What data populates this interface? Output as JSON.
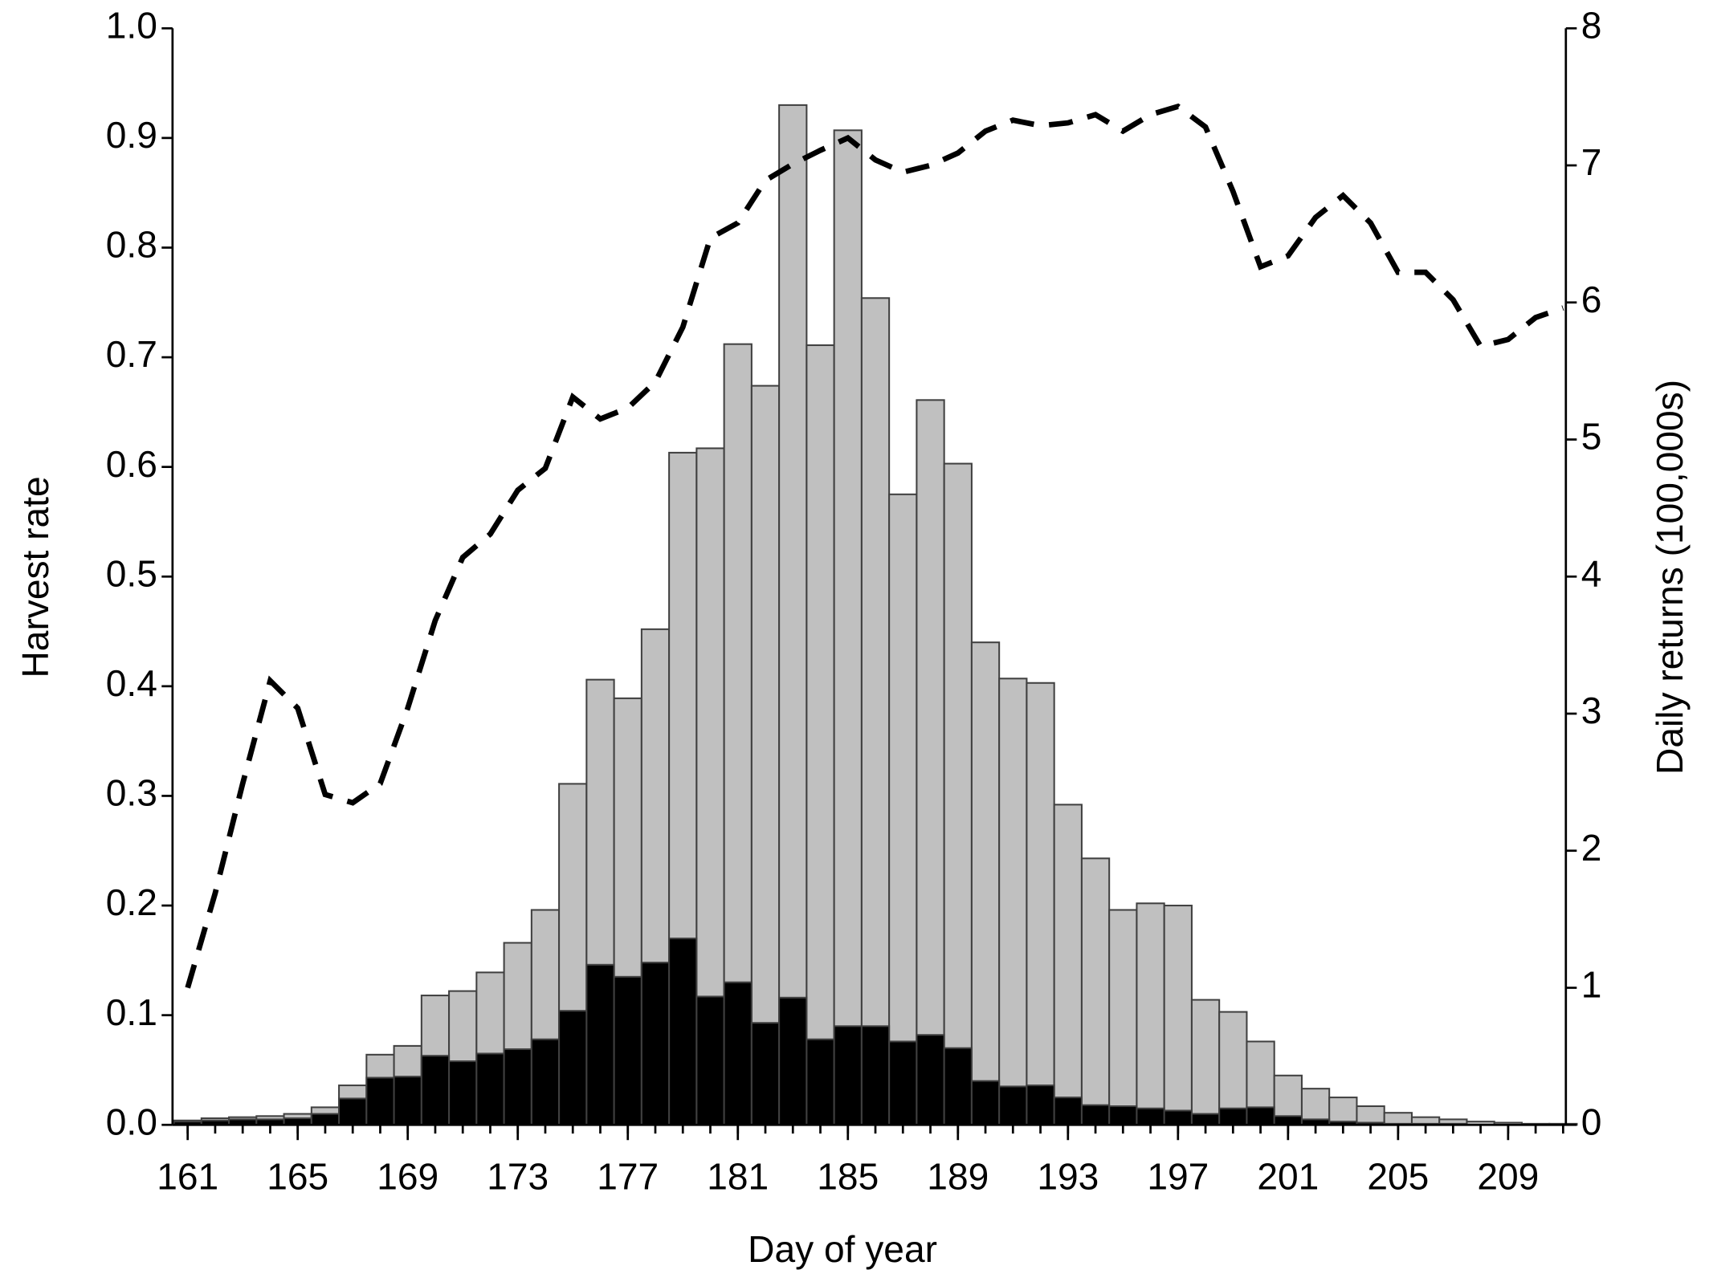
{
  "chart_data": {
    "type": "bar",
    "xlabel": "Day of year",
    "ylabel": "Harvest rate",
    "y2label": "Daily returns (100,000s)",
    "x": [
      161,
      162,
      163,
      164,
      165,
      166,
      167,
      168,
      169,
      170,
      171,
      172,
      173,
      174,
      175,
      176,
      177,
      178,
      179,
      180,
      181,
      182,
      183,
      184,
      185,
      186,
      187,
      188,
      189,
      190,
      191,
      192,
      193,
      194,
      195,
      196,
      197,
      198,
      199,
      200,
      201,
      202,
      203,
      204,
      205,
      206,
      207,
      208,
      209,
      210,
      211
    ],
    "xlim": [
      160.45,
      211.1
    ],
    "xticks": [
      161,
      165,
      169,
      173,
      177,
      181,
      185,
      189,
      193,
      197,
      201,
      205,
      209
    ],
    "ylim": [
      0,
      1
    ],
    "yticks": [
      {
        "value": 0,
        "label": "0.0"
      },
      0.1,
      0.2,
      0.3,
      0.4,
      0.5,
      0.6,
      0.7,
      0.8,
      0.9,
      {
        "value": 1,
        "label": "1.0"
      }
    ],
    "y2lim": [
      0,
      8
    ],
    "y2ticks": [
      0,
      1,
      2,
      3,
      4,
      5,
      6,
      7,
      8
    ],
    "series": [
      {
        "type": "bar",
        "color": "#c0c0c0",
        "values": [
          0.004,
          0.006,
          0.007,
          0.008,
          0.01,
          0.016,
          0.036,
          0.064,
          0.072,
          0.118,
          0.122,
          0.139,
          0.166,
          0.196,
          0.311,
          0.406,
          0.389,
          0.452,
          0.613,
          0.617,
          0.712,
          0.674,
          0.93,
          0.711,
          0.907,
          0.754,
          0.575,
          0.661,
          0.603,
          0.44,
          0.407,
          0.403,
          0.292,
          0.243,
          0.196,
          0.202,
          0.2,
          0.114,
          0.103,
          0.076,
          0.045,
          0.033,
          0.025,
          0.017,
          0.011,
          0.007,
          0.005,
          0.003,
          0.002,
          0.001,
          0.001
        ]
      },
      {
        "type": "bar",
        "color": "#000000",
        "values": [
          0.003,
          0.004,
          0.005,
          0.005,
          0.006,
          0.01,
          0.024,
          0.043,
          0.044,
          0.063,
          0.058,
          0.065,
          0.069,
          0.078,
          0.104,
          0.146,
          0.135,
          0.148,
          0.17,
          0.117,
          0.13,
          0.093,
          0.116,
          0.078,
          0.09,
          0.09,
          0.076,
          0.082,
          0.07,
          0.04,
          0.035,
          0.036,
          0.025,
          0.018,
          0.017,
          0.015,
          0.013,
          0.01,
          0.015,
          0.016,
          0.008,
          0.005,
          0.003,
          0.002,
          0.001,
          0.001,
          0.001,
          0,
          0,
          0,
          0
        ]
      },
      {
        "type": "line",
        "axis": "y2",
        "color": "#000000",
        "dashed": true,
        "values": [
          1.0,
          1.69,
          2.49,
          3.24,
          3.04,
          2.41,
          2.35,
          2.49,
          3.04,
          3.68,
          4.14,
          4.31,
          4.63,
          4.79,
          5.31,
          5.15,
          5.23,
          5.42,
          5.82,
          6.47,
          6.58,
          6.89,
          7.01,
          7.11,
          7.2,
          7.04,
          6.95,
          7.0,
          7.09,
          7.25,
          7.33,
          7.29,
          7.31,
          7.37,
          7.25,
          7.37,
          7.43,
          7.28,
          6.81,
          6.26,
          6.34,
          6.62,
          6.78,
          6.58,
          6.22,
          6.22,
          6.02,
          5.68,
          5.73,
          5.89,
          5.96
        ]
      }
    ]
  }
}
